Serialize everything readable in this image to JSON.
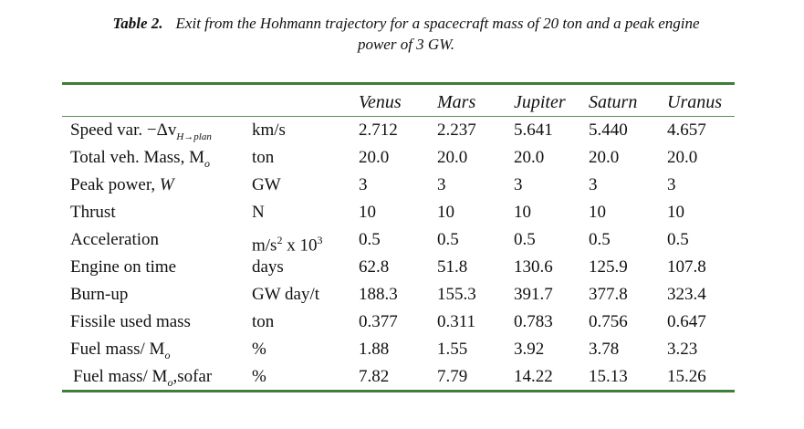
{
  "caption": {
    "label": "Table 2.",
    "text_line1": "Exit from the Hohmann trajectory for a spacecraft mass of 20 ton and a peak engine",
    "text_line2": "power of 3 GW."
  },
  "table": {
    "columns": [
      "Venus",
      "Mars",
      "Jupiter",
      "Saturn",
      "Uranus"
    ],
    "rows": [
      {
        "param": "Speed var. −Δv",
        "param_sub": "H→plan",
        "unit": "km/s",
        "values": [
          "2.712",
          "2.237",
          "5.641",
          "5.440",
          "4.657"
        ]
      },
      {
        "param": "Total veh. Mass, M",
        "param_sub": "o",
        "unit": "ton",
        "values": [
          "20.0",
          "20.0",
          "20.0",
          "20.0",
          "20.0"
        ]
      },
      {
        "param": "Peak power, ",
        "param_italic": "W",
        "unit": "GW",
        "values": [
          "3",
          "3",
          "3",
          "3",
          "3"
        ]
      },
      {
        "param": "Thrust",
        "unit": "N",
        "values": [
          "10",
          "10",
          "10",
          "10",
          "10"
        ]
      },
      {
        "param": "Acceleration",
        "unit": "m/s",
        "unit_sup": "2",
        "unit_mid": " x 10",
        "unit_sup2": "3",
        "values": [
          "0.5",
          "0.5",
          "0.5",
          "0.5",
          "0.5"
        ]
      },
      {
        "param": "Engine on time",
        "unit": "days",
        "values": [
          "62.8",
          "51.8",
          "130.6",
          "125.9",
          "107.8"
        ]
      },
      {
        "param": "Burn-up",
        "unit": "GW day/t",
        "values": [
          "188.3",
          "155.3",
          "391.7",
          "377.8",
          "323.4"
        ]
      },
      {
        "param": "Fissile used mass",
        "unit": "ton",
        "values": [
          "0.377",
          "0.311",
          "0.783",
          "0.756",
          "0.647"
        ]
      },
      {
        "param": "Fuel mass/ M",
        "param_sub": "o",
        "unit": "%",
        "values": [
          "1.88",
          "1.55",
          "3.92",
          "3.78",
          "3.23"
        ]
      },
      {
        "param": "Fuel mass/ M",
        "param_sub": "o",
        "param_tail": ",sofar",
        "unit": "%",
        "values": [
          "7.82",
          "7.79",
          "14.22",
          "15.13",
          "15.26"
        ]
      }
    ]
  }
}
